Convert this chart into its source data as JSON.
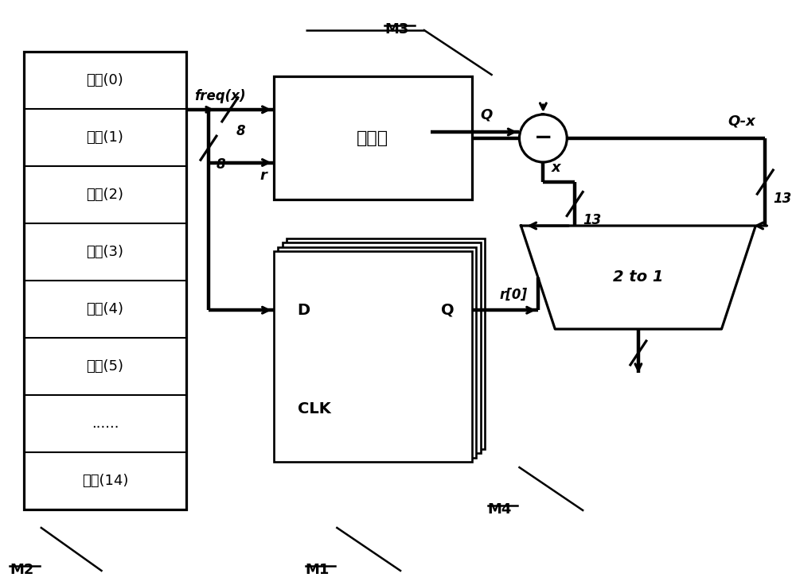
{
  "freq_labels": [
    "频数(0)",
    "频数(1)",
    "频数(2)",
    "频数(3)",
    "频数(4)",
    "频数(5)",
    "......",
    "频数(14)"
  ],
  "comparator_label": "比较器",
  "reg_D": "D",
  "reg_Q": "Q",
  "reg_CLK": "CLK",
  "mux_label": "2 to 1",
  "label_M1": "M1",
  "label_M2": "M2",
  "label_M3": "M3",
  "label_M4": "M4",
  "label_freqx": "freq(x)",
  "label_8a": "8",
  "label_8b": "8",
  "label_r": "r",
  "label_Q": "Q",
  "label_x": "x",
  "label_Qx": "Q-x",
  "label_13a": "13",
  "label_13b": "13",
  "label_r0": "r[0]",
  "minus_sym": "−",
  "bg": "#ffffff",
  "fg": "#000000"
}
